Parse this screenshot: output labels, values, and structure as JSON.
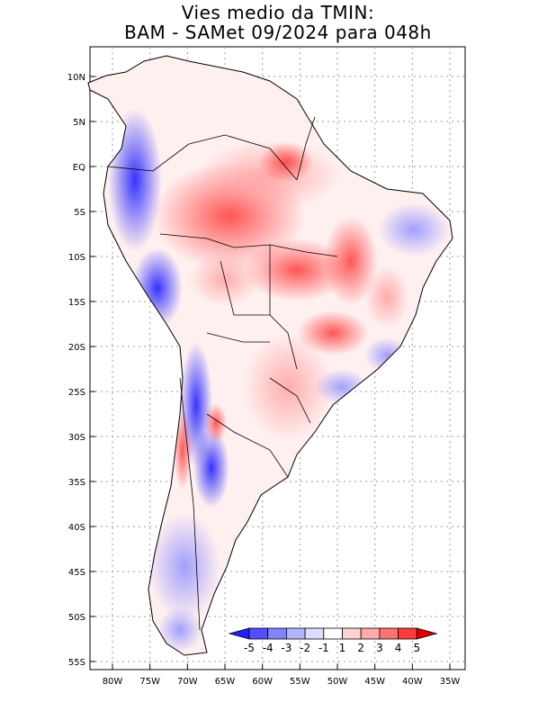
{
  "title": {
    "line1": "Vies medio da TMIN:",
    "line2": "BAM - SAMet 09/2024  para 048h"
  },
  "map": {
    "region": "South America",
    "lat_labels": [
      "10N",
      "5N",
      "EQ",
      "5S",
      "10S",
      "15S",
      "20S",
      "25S",
      "30S",
      "35S",
      "40S",
      "45S",
      "50S",
      "55S"
    ],
    "lon_labels": [
      "80W",
      "75W",
      "70W",
      "65W",
      "60W",
      "55W",
      "50W",
      "45W",
      "40W",
      "35W"
    ]
  },
  "colorbar": {
    "labels": [
      "-5",
      "-4",
      "-3",
      "-2",
      "-1",
      "1",
      "2",
      "3",
      "4",
      "5"
    ],
    "colors": [
      "#1e1eff",
      "#5050ff",
      "#8282ff",
      "#b4b4ff",
      "#dcdcff",
      "#ffffff",
      "#ffd2d2",
      "#ffaaaa",
      "#ff7070",
      "#ff3a3a",
      "#e60000"
    ]
  }
}
